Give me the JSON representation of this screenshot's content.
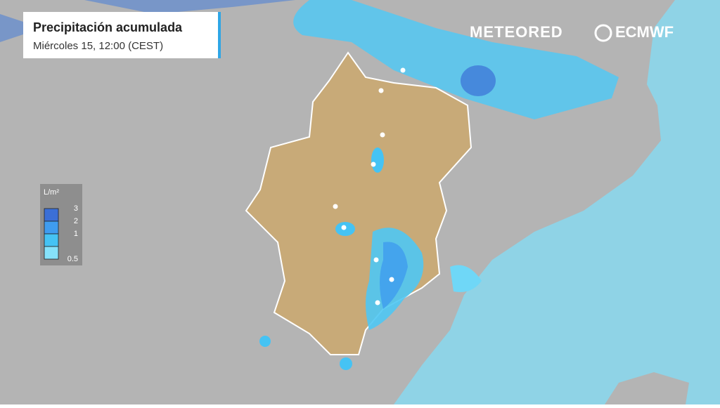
{
  "header": {
    "title": "Precipitación acumulada",
    "subtitle": "Miércoles 15, 12:00 (CEST)"
  },
  "logos": {
    "brand": "METEORED",
    "model": "ECMWF"
  },
  "legend": {
    "unit": "L/m²",
    "items": [
      {
        "value": 3,
        "color": "#3b6fd6"
      },
      {
        "value": 2,
        "color": "#3f9cef"
      },
      {
        "value": 1,
        "color": "#45c3f4"
      },
      {
        "value": 0.5,
        "color": "#86e2fa"
      }
    ]
  }
}
